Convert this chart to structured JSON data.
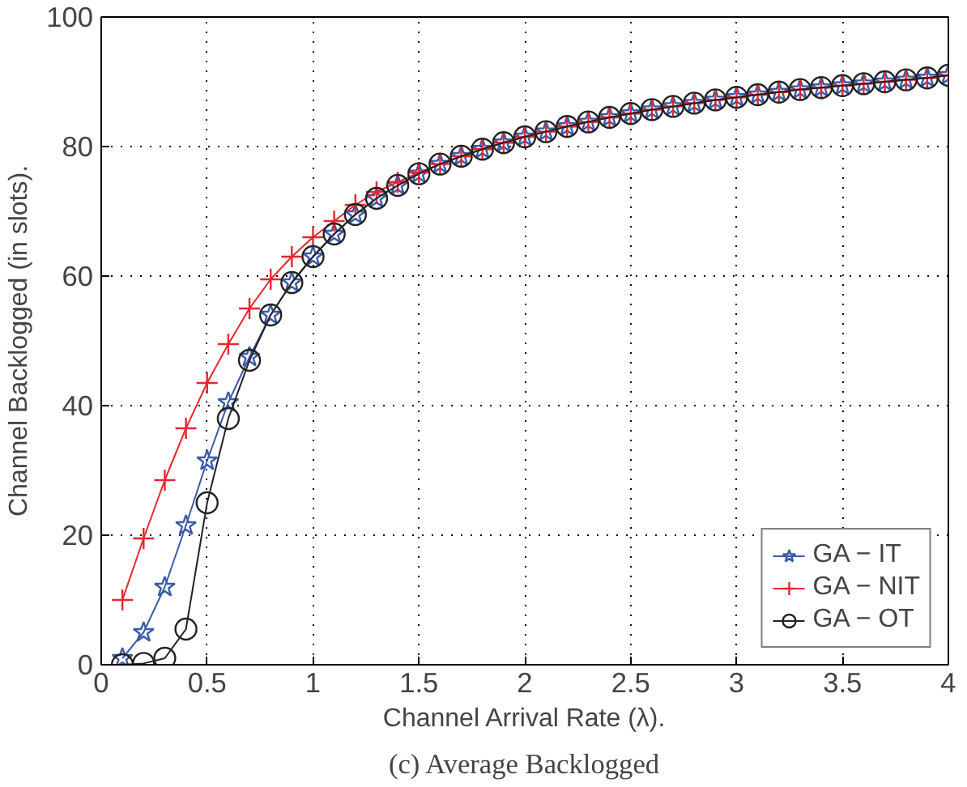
{
  "chart_data": {
    "type": "line",
    "xlabel": "Channel Arrival Rate (λ).",
    "ylabel": "Channel Backlogged (in slots).",
    "annotations": [
      "(c) Average Backlogged"
    ],
    "x": [
      0.1,
      0.2,
      0.3,
      0.4,
      0.5,
      0.6,
      0.7,
      0.8,
      0.9,
      1.0,
      1.1,
      1.2,
      1.3,
      1.4,
      1.5,
      1.6,
      1.7,
      1.8,
      1.9,
      2.0,
      2.1,
      2.2,
      2.3,
      2.4,
      2.5,
      2.6,
      2.7,
      2.8,
      2.9,
      3.0,
      3.1,
      3.2,
      3.3,
      3.4,
      3.5,
      3.6,
      3.7,
      3.8,
      3.9,
      4.0
    ],
    "series": [
      {
        "name": "GA − IT",
        "color": "#3a5ba8",
        "marker": "star",
        "values": [
          1,
          5,
          12,
          21.5,
          31.5,
          40.5,
          47.5,
          54,
          59,
          63,
          66.5,
          69.5,
          72,
          74,
          75.8,
          77.3,
          78.5,
          79.6,
          80.6,
          81.5,
          82.3,
          83.1,
          83.8,
          84.5,
          85.1,
          85.7,
          86.2,
          86.7,
          87.2,
          87.6,
          88.0,
          88.4,
          88.8,
          89.1,
          89.4,
          89.7,
          90.0,
          90.3,
          90.6,
          91
        ]
      },
      {
        "name": "GA − NIT",
        "color": "#e8252e",
        "marker": "cross",
        "values": [
          10,
          19.5,
          28.5,
          36.5,
          43.5,
          49.5,
          55,
          59.5,
          63,
          66,
          68.5,
          71,
          73,
          74.5,
          76,
          77.3,
          78.5,
          79.6,
          80.6,
          81.5,
          82.3,
          83.1,
          83.8,
          84.5,
          85.1,
          85.7,
          86.2,
          86.7,
          87.2,
          87.6,
          88.0,
          88.4,
          88.8,
          89.1,
          89.4,
          89.7,
          90.0,
          90.3,
          90.6,
          91
        ]
      },
      {
        "name": "GA − OT",
        "color": "#222222",
        "marker": "circle",
        "values": [
          0,
          0.2,
          1,
          5.5,
          25,
          38,
          47,
          54,
          59,
          63,
          66.5,
          69.5,
          72,
          74,
          75.8,
          77.3,
          78.5,
          79.6,
          80.6,
          81.5,
          82.3,
          83.1,
          83.8,
          84.5,
          85.1,
          85.7,
          86.2,
          86.7,
          87.2,
          87.6,
          88.0,
          88.4,
          88.8,
          89.1,
          89.4,
          89.7,
          90.0,
          90.3,
          90.6,
          91
        ]
      }
    ],
    "xlim": [
      0,
      4
    ],
    "ylim": [
      0,
      100
    ],
    "xticks": [
      0,
      0.5,
      1,
      1.5,
      2,
      2.5,
      3,
      3.5,
      4
    ],
    "yticks": [
      0,
      20,
      40,
      60,
      80,
      100
    ],
    "grid": true,
    "legend": "bottom right",
    "line_style": "solid"
  }
}
